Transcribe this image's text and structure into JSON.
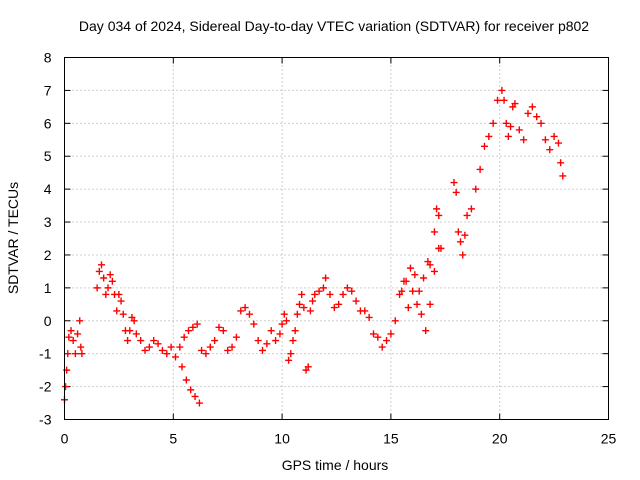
{
  "chart_data": {
    "type": "scatter",
    "title": "Day 034 of 2024, Sidereal Day-to-day VTEC variation (SDTVAR) for receiver p802",
    "xlabel": "GPS time / hours",
    "ylabel": "SDTVAR / TECUs",
    "xlim": [
      0,
      25
    ],
    "ylim": [
      -3,
      8
    ],
    "xticks": [
      0,
      5,
      10,
      15,
      20,
      25
    ],
    "yticks": [
      -3,
      -2,
      -1,
      0,
      1,
      2,
      3,
      4,
      5,
      6,
      7,
      8
    ],
    "xtick_labels": [
      "0",
      "5",
      "10",
      "15",
      "20",
      "25"
    ],
    "ytick_labels": [
      "-3",
      "-2",
      "-1",
      "0",
      "1",
      "2",
      "3",
      "4",
      "5",
      "6",
      "7",
      "8"
    ],
    "grid": true,
    "marker": "+",
    "color": "#ff0000",
    "series": [
      {
        "name": "SDTVAR",
        "points": [
          [
            0.0,
            -2.4
          ],
          [
            0.05,
            -2.0
          ],
          [
            0.1,
            -1.5
          ],
          [
            0.15,
            -1.0
          ],
          [
            0.2,
            -0.5
          ],
          [
            0.3,
            -0.3
          ],
          [
            0.4,
            -0.6
          ],
          [
            0.5,
            -1.0
          ],
          [
            0.6,
            -0.4
          ],
          [
            0.7,
            0.0
          ],
          [
            0.75,
            -0.8
          ],
          [
            0.8,
            -1.0
          ],
          [
            1.5,
            1.0
          ],
          [
            1.6,
            1.5
          ],
          [
            1.7,
            1.7
          ],
          [
            1.8,
            1.3
          ],
          [
            1.9,
            0.8
          ],
          [
            2.0,
            1.0
          ],
          [
            2.1,
            1.4
          ],
          [
            2.2,
            1.2
          ],
          [
            2.3,
            0.8
          ],
          [
            2.4,
            0.3
          ],
          [
            2.5,
            0.8
          ],
          [
            2.6,
            0.6
          ],
          [
            2.7,
            0.2
          ],
          [
            2.8,
            -0.3
          ],
          [
            2.9,
            -0.6
          ],
          [
            3.0,
            -0.3
          ],
          [
            3.1,
            0.1
          ],
          [
            3.2,
            0.0
          ],
          [
            3.3,
            -0.4
          ],
          [
            3.5,
            -0.6
          ],
          [
            3.7,
            -0.9
          ],
          [
            3.9,
            -0.8
          ],
          [
            4.1,
            -0.6
          ],
          [
            4.3,
            -0.7
          ],
          [
            4.5,
            -0.9
          ],
          [
            4.7,
            -1.0
          ],
          [
            4.9,
            -0.8
          ],
          [
            5.1,
            -1.1
          ],
          [
            5.3,
            -0.8
          ],
          [
            5.5,
            -0.5
          ],
          [
            5.7,
            -0.3
          ],
          [
            5.9,
            -0.2
          ],
          [
            6.1,
            -0.1
          ],
          [
            5.4,
            -1.4
          ],
          [
            5.6,
            -1.8
          ],
          [
            5.8,
            -2.1
          ],
          [
            6.0,
            -2.3
          ],
          [
            6.2,
            -2.5
          ],
          [
            6.3,
            -0.9
          ],
          [
            6.5,
            -1.0
          ],
          [
            6.7,
            -0.8
          ],
          [
            6.9,
            -0.6
          ],
          [
            7.1,
            -0.2
          ],
          [
            7.3,
            -0.3
          ],
          [
            7.5,
            -0.9
          ],
          [
            7.7,
            -0.8
          ],
          [
            7.9,
            -0.5
          ],
          [
            8.1,
            0.3
          ],
          [
            8.3,
            0.4
          ],
          [
            8.5,
            0.2
          ],
          [
            8.7,
            -0.1
          ],
          [
            8.9,
            -0.6
          ],
          [
            9.1,
            -0.9
          ],
          [
            9.3,
            -0.7
          ],
          [
            9.5,
            -0.3
          ],
          [
            9.7,
            -0.6
          ],
          [
            9.9,
            -0.4
          ],
          [
            10.0,
            -0.1
          ],
          [
            10.1,
            0.2
          ],
          [
            10.2,
            0.0
          ],
          [
            10.3,
            -1.2
          ],
          [
            10.4,
            -1.0
          ],
          [
            10.5,
            -0.6
          ],
          [
            10.6,
            -0.3
          ],
          [
            10.7,
            0.2
          ],
          [
            10.8,
            0.5
          ],
          [
            10.9,
            0.8
          ],
          [
            11.0,
            0.4
          ],
          [
            11.1,
            -1.5
          ],
          [
            11.2,
            -1.4
          ],
          [
            11.3,
            0.3
          ],
          [
            11.4,
            0.6
          ],
          [
            11.5,
            0.8
          ],
          [
            11.7,
            0.9
          ],
          [
            11.9,
            1.0
          ],
          [
            12.0,
            1.3
          ],
          [
            12.2,
            0.8
          ],
          [
            12.4,
            0.4
          ],
          [
            12.6,
            0.5
          ],
          [
            12.8,
            0.8
          ],
          [
            13.0,
            1.0
          ],
          [
            13.2,
            0.9
          ],
          [
            13.4,
            0.6
          ],
          [
            13.6,
            0.3
          ],
          [
            13.8,
            0.3
          ],
          [
            14.0,
            0.1
          ],
          [
            14.2,
            -0.4
          ],
          [
            14.4,
            -0.5
          ],
          [
            14.6,
            -0.8
          ],
          [
            14.8,
            -0.6
          ],
          [
            15.0,
            -0.4
          ],
          [
            15.2,
            0.0
          ],
          [
            15.4,
            0.8
          ],
          [
            15.5,
            0.9
          ],
          [
            15.7,
            1.2
          ],
          [
            15.9,
            1.6
          ],
          [
            16.1,
            1.4
          ],
          [
            16.3,
            0.9
          ],
          [
            16.5,
            1.3
          ],
          [
            16.7,
            1.8
          ],
          [
            16.8,
            1.7
          ],
          [
            17.0,
            2.7
          ],
          [
            17.1,
            3.4
          ],
          [
            17.2,
            3.2
          ],
          [
            17.3,
            2.2
          ],
          [
            15.6,
            1.2
          ],
          [
            15.8,
            0.4
          ],
          [
            16.0,
            0.9
          ],
          [
            16.2,
            0.5
          ],
          [
            16.4,
            0.2
          ],
          [
            16.6,
            -0.3
          ],
          [
            16.8,
            0.5
          ],
          [
            17.0,
            1.5
          ],
          [
            17.2,
            2.2
          ],
          [
            17.9,
            4.2
          ],
          [
            18.0,
            3.9
          ],
          [
            18.1,
            2.7
          ],
          [
            18.2,
            2.4
          ],
          [
            18.3,
            2.0
          ],
          [
            18.4,
            2.6
          ],
          [
            18.5,
            3.2
          ],
          [
            18.7,
            3.4
          ],
          [
            18.9,
            4.0
          ],
          [
            19.1,
            4.6
          ],
          [
            19.3,
            5.3
          ],
          [
            19.5,
            5.6
          ],
          [
            19.7,
            6.0
          ],
          [
            19.9,
            6.7
          ],
          [
            20.1,
            7.0
          ],
          [
            20.2,
            6.7
          ],
          [
            20.3,
            6.0
          ],
          [
            20.4,
            5.6
          ],
          [
            20.5,
            5.9
          ],
          [
            20.6,
            6.5
          ],
          [
            20.7,
            6.6
          ],
          [
            20.9,
            5.8
          ],
          [
            21.1,
            5.5
          ],
          [
            21.3,
            6.3
          ],
          [
            21.5,
            6.5
          ],
          [
            21.7,
            6.2
          ],
          [
            21.9,
            6.0
          ],
          [
            22.1,
            5.5
          ],
          [
            22.3,
            5.2
          ],
          [
            22.5,
            5.6
          ],
          [
            22.7,
            5.4
          ],
          [
            22.8,
            4.8
          ],
          [
            22.9,
            4.4
          ]
        ]
      }
    ]
  }
}
